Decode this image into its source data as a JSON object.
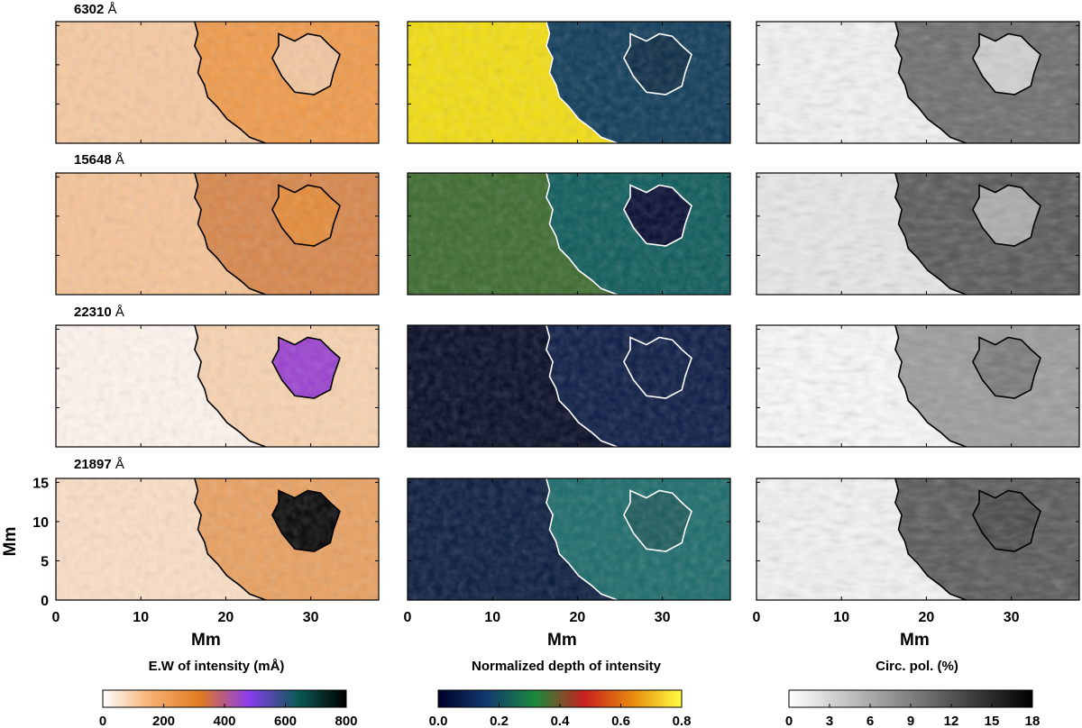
{
  "figure": {
    "rows": [
      {
        "label_number": "6302",
        "label_unit": "Å"
      },
      {
        "label_number": "15648",
        "label_unit": "Å"
      },
      {
        "label_number": "22310",
        "label_unit": "Å"
      },
      {
        "label_number": "21897",
        "label_unit": "Å"
      }
    ],
    "y_axis_label": "Mm",
    "x_axis_label": "Mm",
    "x_ticks": [
      "0",
      "10",
      "20",
      "30"
    ],
    "y_ticks": [
      "0",
      "5",
      "10",
      "15"
    ],
    "columns": [
      {
        "caption": "E.W of intensity (mÅ)",
        "colorbar_ticks": [
          "0",
          "200",
          "400",
          "600",
          "800"
        ],
        "colormap": [
          "#ffffff",
          "#f5b070",
          "#e07a20",
          "#8a3cf0",
          "#0b5a55",
          "#000000"
        ]
      },
      {
        "caption": "Normalized depth of intensity",
        "colorbar_ticks": [
          "0.0",
          "0.2",
          "0.4",
          "0.6",
          "0.8"
        ],
        "colormap": [
          "#000028",
          "#123a70",
          "#1a8a3a",
          "#c8201e",
          "#e88a10",
          "#ffff40"
        ]
      },
      {
        "caption": "Circ. pol. (%)",
        "colorbar_ticks": [
          "0",
          "3",
          "6",
          "9",
          "12",
          "15",
          "18"
        ],
        "colormap": [
          "#ffffff",
          "#000000"
        ]
      }
    ]
  }
}
